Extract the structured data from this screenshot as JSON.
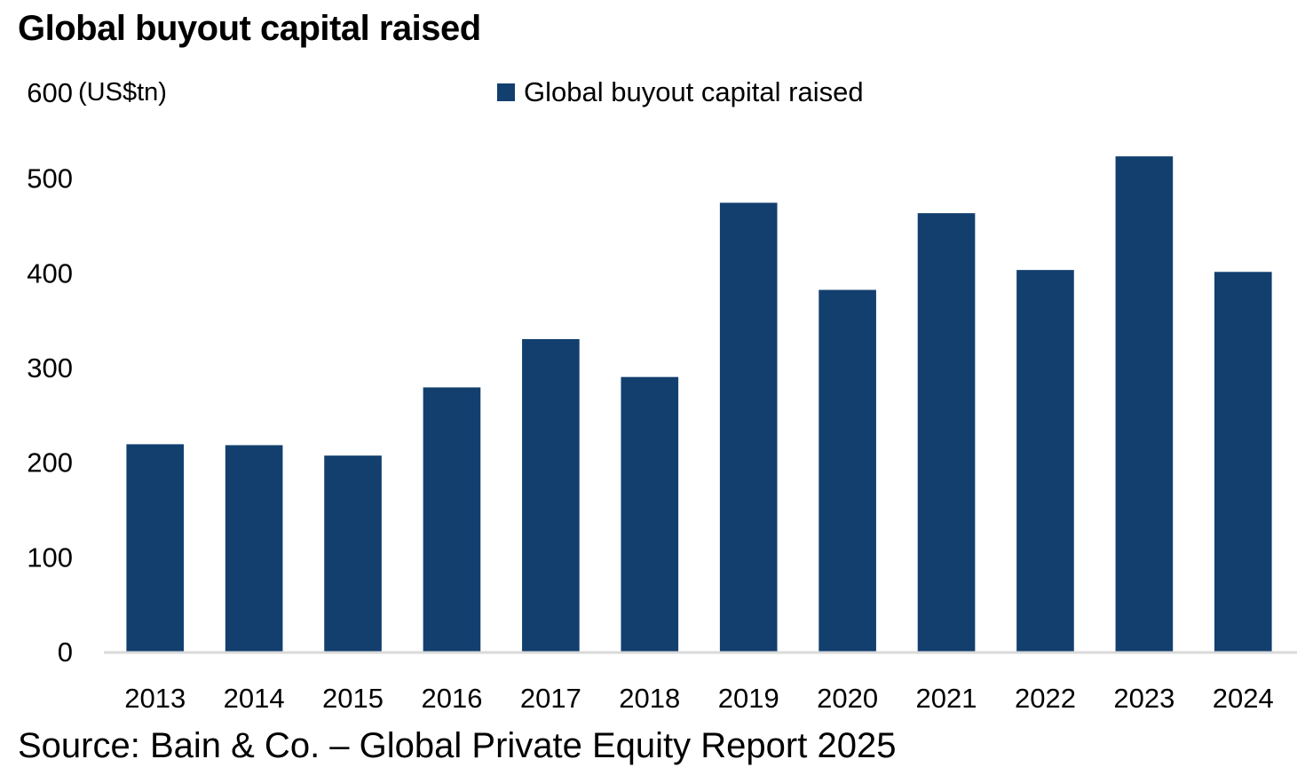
{
  "header": {
    "title": "Global buyout capital raised"
  },
  "footer": {
    "source": "Source: Bain & Co. – Global Private Equity Report 2025"
  },
  "colors": {
    "bar": "#123f6e",
    "axis": "#d9d9d9",
    "text": "#000000"
  },
  "chart_data": {
    "type": "bar",
    "title": "Global buyout capital raised",
    "xlabel": "",
    "ylabel": "(US$tn)",
    "unit_label": "(US$tn)",
    "categories": [
      "2013",
      "2014",
      "2015",
      "2016",
      "2017",
      "2018",
      "2019",
      "2020",
      "2021",
      "2022",
      "2023",
      "2024"
    ],
    "series": [
      {
        "name": "Global buyout capital raised",
        "values": [
          219,
          218,
          207,
          279,
          330,
          290,
          474,
          382,
          463,
          403,
          523,
          401
        ]
      }
    ],
    "ylim": [
      0,
      600
    ],
    "yticks": [
      0,
      100,
      200,
      300,
      400,
      500,
      600
    ],
    "ytick_labels": [
      "0",
      "100",
      "200",
      "300",
      "400",
      "500",
      "600"
    ],
    "grid": false,
    "legend": {
      "entries": [
        "Global buyout capital raised"
      ],
      "placement": "top-center"
    }
  }
}
